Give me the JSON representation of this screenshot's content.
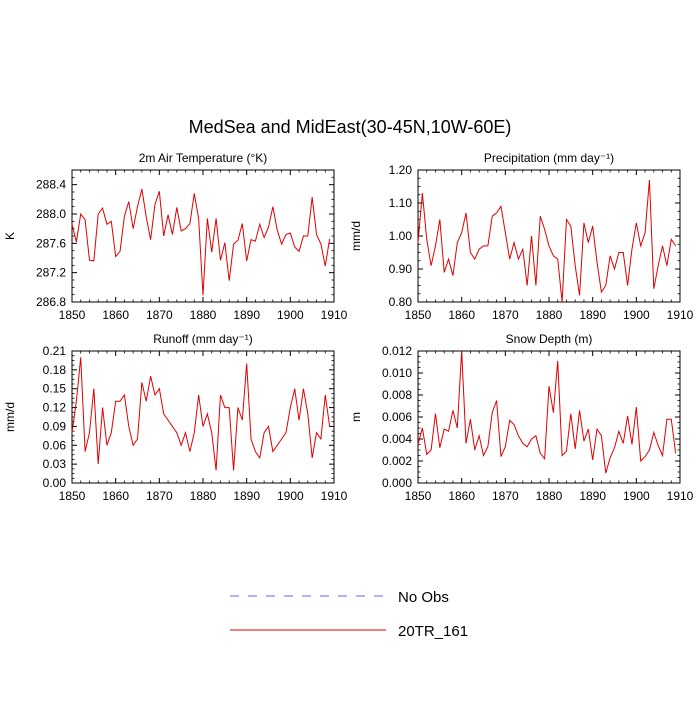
{
  "title": "MedSea and MidEast(30-45N,10W-60E)",
  "legend": [
    {
      "label": "No Obs",
      "style": "dashed",
      "color": "#6666ee"
    },
    {
      "label": "20TR_161",
      "style": "solid",
      "color": "#e00000"
    }
  ],
  "chart_data": [
    {
      "type": "line",
      "title": "2m Air Temperature (°K)",
      "ylabel": "K",
      "xlim": [
        1850,
        1910
      ],
      "ylim": [
        286.8,
        288.6
      ],
      "yticks": [
        286.8,
        287.2,
        287.6,
        288.0,
        288.4
      ],
      "ytick_labels": [
        "286.8",
        "287.2",
        "287.6",
        "288.0",
        "288.4"
      ],
      "xticks": [
        1850,
        1860,
        1870,
        1880,
        1890,
        1900,
        1910
      ],
      "start_year": 1850,
      "series": [
        {
          "name": "20TR_161",
          "color": "#e00000",
          "values": [
            287.86,
            287.62,
            288.0,
            287.92,
            287.37,
            287.36,
            288.0,
            288.08,
            287.86,
            287.9,
            287.42,
            287.49,
            287.97,
            288.17,
            287.8,
            288.1,
            288.34,
            287.96,
            287.65,
            288.13,
            288.31,
            287.7,
            287.99,
            287.72,
            288.09,
            287.77,
            287.8,
            287.87,
            288.28,
            287.94,
            286.89,
            287.94,
            287.48,
            287.94,
            287.37,
            287.61,
            287.09,
            287.59,
            287.64,
            287.87,
            287.36,
            287.65,
            287.63,
            287.86,
            287.68,
            287.82,
            288.1,
            287.78,
            287.59,
            287.72,
            287.74,
            287.55,
            287.49,
            287.7,
            287.7,
            288.23,
            287.72,
            287.59,
            287.29,
            287.66
          ]
        }
      ]
    },
    {
      "type": "line",
      "title": "Precipitation (mm day⁻¹)",
      "ylabel": "mm/d",
      "xlim": [
        1850,
        1910
      ],
      "ylim": [
        0.8,
        1.2
      ],
      "yticks": [
        0.8,
        0.9,
        1.0,
        1.1,
        1.2
      ],
      "ytick_labels": [
        "0.80",
        "0.90",
        "1.00",
        "1.10",
        "1.20"
      ],
      "xticks": [
        1850,
        1860,
        1870,
        1880,
        1890,
        1900,
        1910
      ],
      "start_year": 1850,
      "series": [
        {
          "name": "20TR_161",
          "color": "#e00000",
          "values": [
            0.98,
            1.13,
            0.99,
            0.91,
            0.97,
            1.05,
            0.89,
            0.93,
            0.88,
            0.98,
            1.01,
            1.07,
            0.95,
            0.93,
            0.96,
            0.97,
            0.97,
            1.06,
            1.07,
            1.09,
            1.01,
            0.93,
            0.98,
            0.93,
            0.96,
            0.85,
            1.0,
            0.85,
            1.06,
            1.02,
            0.97,
            0.94,
            0.93,
            0.8,
            1.05,
            1.03,
            0.91,
            0.82,
            1.04,
            0.98,
            1.03,
            0.92,
            0.83,
            0.85,
            0.94,
            0.9,
            0.95,
            0.95,
            0.85,
            0.96,
            1.04,
            0.97,
            1.01,
            1.17,
            0.84,
            0.91,
            0.97,
            0.91,
            0.99,
            0.97
          ]
        }
      ]
    },
    {
      "type": "line",
      "title": "Runoff (mm day⁻¹)",
      "ylabel": "mm/d",
      "xlim": [
        1850,
        1910
      ],
      "ylim": [
        0.0,
        0.21
      ],
      "yticks": [
        0.0,
        0.03,
        0.06,
        0.09,
        0.12,
        0.15,
        0.18,
        0.21
      ],
      "ytick_labels": [
        "0.00",
        "0.03",
        "0.06",
        "0.09",
        "0.12",
        "0.15",
        "0.18",
        "0.21"
      ],
      "xticks": [
        1850,
        1860,
        1870,
        1880,
        1890,
        1900,
        1910
      ],
      "start_year": 1850,
      "series": [
        {
          "name": "20TR_161",
          "color": "#e00000",
          "values": [
            0.08,
            0.13,
            0.2,
            0.05,
            0.08,
            0.15,
            0.03,
            0.12,
            0.06,
            0.08,
            0.13,
            0.13,
            0.14,
            0.09,
            0.06,
            0.07,
            0.16,
            0.13,
            0.17,
            0.14,
            0.15,
            0.11,
            0.1,
            0.09,
            0.08,
            0.06,
            0.08,
            0.05,
            0.08,
            0.14,
            0.09,
            0.11,
            0.08,
            0.02,
            0.14,
            0.12,
            0.12,
            0.02,
            0.12,
            0.1,
            0.19,
            0.07,
            0.05,
            0.04,
            0.08,
            0.09,
            0.05,
            0.06,
            0.07,
            0.08,
            0.12,
            0.15,
            0.1,
            0.15,
            0.11,
            0.04,
            0.08,
            0.07,
            0.14,
            0.09
          ]
        }
      ]
    },
    {
      "type": "line",
      "title": "Snow Depth (m)",
      "ylabel": "m",
      "xlim": [
        1850,
        1910
      ],
      "ylim": [
        0.0,
        0.012
      ],
      "yticks": [
        0.0,
        0.002,
        0.004,
        0.006,
        0.008,
        0.01,
        0.012
      ],
      "ytick_labels": [
        "0.000",
        "0.002",
        "0.004",
        "0.006",
        "0.008",
        "0.010",
        "0.012"
      ],
      "xticks": [
        1850,
        1860,
        1870,
        1880,
        1890,
        1900,
        1910
      ],
      "start_year": 1850,
      "series": [
        {
          "name": "20TR_161",
          "color": "#e00000",
          "values": [
            0.0035,
            0.005,
            0.0026,
            0.003,
            0.0063,
            0.0032,
            0.0049,
            0.0047,
            0.0066,
            0.005,
            0.012,
            0.0036,
            0.0058,
            0.003,
            0.0043,
            0.0025,
            0.0033,
            0.0064,
            0.0075,
            0.0024,
            0.0033,
            0.0057,
            0.0053,
            0.0043,
            0.0036,
            0.0033,
            0.004,
            0.0043,
            0.0027,
            0.0022,
            0.0088,
            0.0064,
            0.0111,
            0.0025,
            0.0029,
            0.0063,
            0.0031,
            0.0066,
            0.0038,
            0.0049,
            0.0021,
            0.0049,
            0.0043,
            0.0009,
            0.0023,
            0.0032,
            0.0047,
            0.0036,
            0.0061,
            0.0035,
            0.0069,
            0.002,
            0.0024,
            0.003,
            0.0046,
            0.0034,
            0.0025,
            0.0058,
            0.0058,
            0.0027
          ]
        }
      ]
    }
  ]
}
